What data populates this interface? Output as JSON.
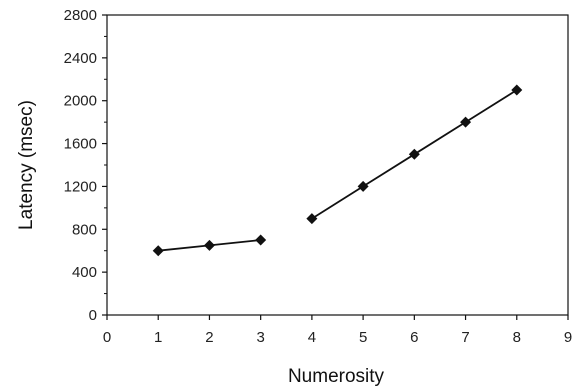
{
  "chart_data": {
    "type": "line",
    "xlabel": "Numerosity",
    "ylabel": "Latency (msec)",
    "xlim": [
      0,
      9
    ],
    "ylim": [
      0,
      2800
    ],
    "xticks": [
      0,
      1,
      2,
      3,
      4,
      5,
      6,
      7,
      8,
      9
    ],
    "yticks": [
      0,
      400,
      800,
      1200,
      1600,
      2000,
      2400,
      2800
    ],
    "grid": false,
    "marker": "diamond",
    "colors": {
      "line": "#111111",
      "marker": "#111111",
      "axis": "#111111"
    },
    "segments": [
      {
        "x": [
          1,
          2,
          3
        ],
        "y": [
          600,
          650,
          700
        ]
      },
      {
        "x": [
          4,
          5,
          6,
          7,
          8
        ],
        "y": [
          900,
          1200,
          1500,
          1800,
          2100
        ]
      }
    ]
  }
}
